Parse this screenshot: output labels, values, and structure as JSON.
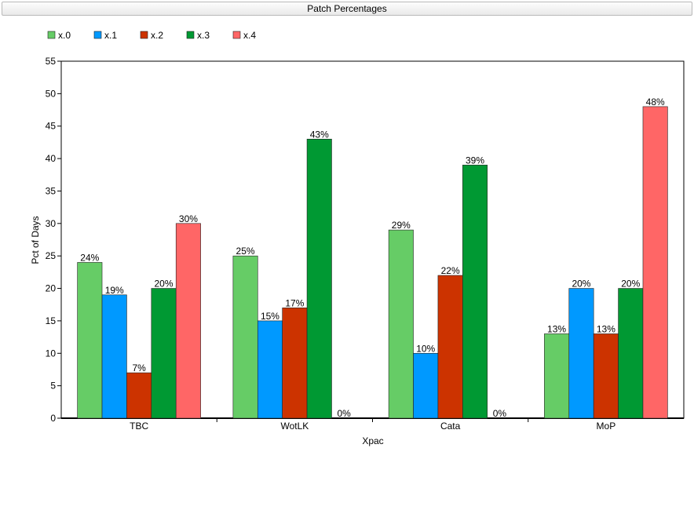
{
  "window": {
    "title": "Patch Percentages"
  },
  "chart_data": {
    "type": "bar",
    "title": "Patch Percentages",
    "xlabel": "Xpac",
    "ylabel": "Pct of Days",
    "categories": [
      "TBC",
      "WotLK",
      "Cata",
      "MoP"
    ],
    "ylim": [
      0,
      55
    ],
    "yticks": [
      0,
      5,
      10,
      15,
      20,
      25,
      30,
      35,
      40,
      45,
      50,
      55
    ],
    "legend_position": "top-left",
    "grid": false,
    "series": [
      {
        "name": "x.0",
        "color": "#66cc66",
        "values": [
          24,
          25,
          29,
          13
        ],
        "labels": [
          "24%",
          "25%",
          "29%",
          "13%"
        ]
      },
      {
        "name": "x.1",
        "color": "#0099ff",
        "values": [
          19,
          15,
          10,
          20
        ],
        "labels": [
          "19%",
          "15%",
          "10%",
          "20%"
        ]
      },
      {
        "name": "x.2",
        "color": "#cc3300",
        "values": [
          7,
          17,
          22,
          13
        ],
        "labels": [
          "7%",
          "17%",
          "22%",
          "13%"
        ]
      },
      {
        "name": "x.3",
        "color": "#009933",
        "values": [
          20,
          43,
          39,
          20
        ],
        "labels": [
          "20%",
          "43%",
          "39%",
          "20%"
        ]
      },
      {
        "name": "x.4",
        "color": "#ff6666",
        "values": [
          30,
          0,
          0,
          48
        ],
        "labels": [
          "30%",
          "0%",
          "0%",
          "48%"
        ]
      }
    ]
  }
}
